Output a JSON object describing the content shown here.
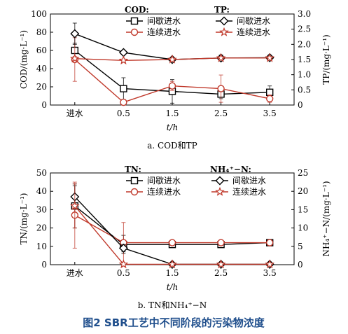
{
  "figure_caption": "图2  SBR工艺中不同阶段的污染物浓度",
  "colors": {
    "intermittent": "#000000",
    "continuous": "#c0392b",
    "caption": "#1f4e8c",
    "grid": "#aaaaaa"
  },
  "chart_data": [
    {
      "type": "line",
      "subcaption": "a. COD和TP",
      "xlabel": "t/h",
      "categories": [
        "进水",
        "0.5",
        "1.5",
        "2.5",
        "3.5"
      ],
      "y_left": {
        "label": "COD/(mg·L⁻¹)",
        "ylim": [
          0,
          100
        ],
        "ticks": [
          "0",
          "20",
          "40",
          "60",
          "80",
          "100"
        ]
      },
      "y_right": {
        "label": "TP/(mg·L⁻¹)",
        "ylim": [
          0,
          3.0
        ],
        "ticks": [
          "0",
          "0.5",
          "1.0",
          "1.5",
          "2.0",
          "2.5",
          "3.0"
        ]
      },
      "legend_groups": [
        {
          "title": "COD:",
          "entries": [
            "间歇进水",
            "连续进水"
          ]
        },
        {
          "title": "TP:",
          "entries": [
            "间歇进水",
            "连续进水"
          ]
        }
      ],
      "series": [
        {
          "name": "间歇进水",
          "group": "COD",
          "axis": "left",
          "marker": "square",
          "color": "#000000",
          "values": [
            60,
            18,
            15,
            12,
            14
          ],
          "errors": [
            8,
            12,
            13,
            5,
            7
          ]
        },
        {
          "name": "连续进水",
          "group": "COD",
          "axis": "left",
          "marker": "circle",
          "color": "#c0392b",
          "values": [
            50,
            3,
            21,
            18,
            7
          ],
          "errors": [
            24,
            3,
            5,
            15,
            4
          ]
        },
        {
          "name": "间歇进水",
          "group": "TP",
          "axis": "right",
          "marker": "diamond",
          "color": "#000000",
          "values": [
            2.35,
            1.73,
            1.5,
            1.55,
            1.56
          ],
          "errors": [
            0.35,
            0.05,
            0.05,
            0.1,
            0.08
          ]
        },
        {
          "name": "连续进水",
          "group": "TP",
          "axis": "right",
          "marker": "star",
          "color": "#c0392b",
          "values": [
            1.53,
            1.47,
            1.5,
            1.55,
            1.55
          ],
          "errors": [
            0.02,
            0.02,
            0.02,
            0.02,
            0.02
          ]
        }
      ]
    },
    {
      "type": "line",
      "subcaption": "b. TN和NH₄⁺−N",
      "xlabel": "t/h",
      "categories": [
        "进水",
        "0.5",
        "1.5",
        "2.5",
        "3.5"
      ],
      "y_left": {
        "label": "TN/(mg·L⁻¹)",
        "ylim": [
          0,
          50
        ],
        "ticks": [
          "0",
          "10",
          "20",
          "30",
          "40",
          "50"
        ]
      },
      "y_right": {
        "label": "NH₄⁺−N/(mg·L⁻¹)",
        "ylim": [
          0,
          25
        ],
        "ticks": [
          "0",
          "5",
          "10",
          "15",
          "20",
          "25"
        ]
      },
      "legend_groups": [
        {
          "title": "TN:",
          "entries": [
            "间歇进水",
            "连续进水"
          ]
        },
        {
          "title": "NH₄⁺−N:",
          "entries": [
            "间歇进水",
            "连续进水"
          ]
        }
      ],
      "series": [
        {
          "name": "间歇进水",
          "group": "TN",
          "axis": "left",
          "marker": "square",
          "color": "#000000",
          "values": [
            32,
            11,
            11,
            11,
            12
          ],
          "errors": [
            12,
            5,
            1,
            1,
            1
          ]
        },
        {
          "name": "连续进水",
          "group": "TN",
          "axis": "left",
          "marker": "circle",
          "color": "#c0392b",
          "values": [
            27,
            12,
            12,
            12,
            12
          ],
          "errors": [
            18,
            11,
            1,
            1,
            1
          ]
        },
        {
          "name": "间歇进水",
          "group": "NH4",
          "axis": "right",
          "marker": "diamond",
          "color": "#000000",
          "values": [
            18.5,
            4.5,
            0.1,
            0.1,
            0.1
          ],
          "errors": [
            3,
            1,
            0,
            0,
            0
          ]
        },
        {
          "name": "连续进水",
          "group": "NH4",
          "axis": "right",
          "marker": "star",
          "color": "#c0392b",
          "values": [
            16,
            0.1,
            0.1,
            0.1,
            0.1
          ],
          "errors": [
            6,
            0,
            0,
            0,
            0
          ]
        }
      ]
    }
  ]
}
